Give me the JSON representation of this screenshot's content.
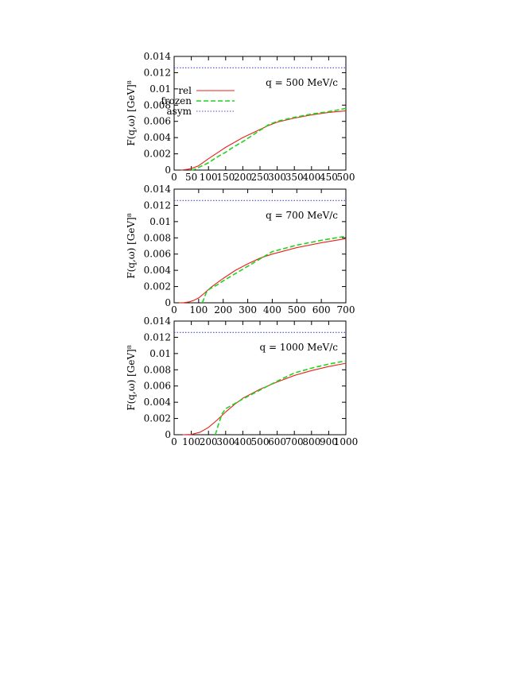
{
  "figure": {
    "y_axis_label": "F(q,ω) [GeV]⁸"
  },
  "legend": [
    {
      "name": "rel",
      "color": "#e8201b",
      "dash": "solid"
    },
    {
      "name": "frozen",
      "color": "#1fd41f",
      "dash": "dashed"
    },
    {
      "name": "asym",
      "color": "#4a4ad8",
      "dash": "dotted"
    }
  ],
  "chart_data": [
    {
      "type": "line",
      "annotation": "q = 500 MeV/c",
      "xlim": [
        0,
        500
      ],
      "ylim": [
        0,
        0.014
      ],
      "x_ticks": [
        "0",
        "50",
        "100",
        "150",
        "200",
        "250",
        "300",
        "350",
        "400",
        "450",
        "500"
      ],
      "y_ticks": [
        "0",
        "0.002",
        "0.004",
        "0.006",
        "0.008",
        "0.01",
        "0.012",
        "0.014"
      ],
      "x_tick_values": [
        0,
        50,
        100,
        150,
        200,
        250,
        300,
        350,
        400,
        450,
        500
      ],
      "y_tick_values": [
        0,
        0.002,
        0.004,
        0.006,
        0.008,
        0.01,
        0.012,
        0.014
      ],
      "show_legend": true,
      "series": [
        {
          "name": "rel",
          "x": [
            20,
            30,
            40,
            50,
            60,
            70,
            80,
            100,
            125,
            150,
            175,
            200,
            225,
            250,
            275,
            300,
            350,
            400,
            450,
            500
          ],
          "y": [
            0.0,
            5e-05,
            0.0001,
            0.0002,
            0.00035,
            0.0005,
            0.0008,
            0.0014,
            0.0021,
            0.0028,
            0.0034,
            0.004,
            0.0045,
            0.005,
            0.0055,
            0.0059,
            0.0064,
            0.0068,
            0.0071,
            0.0073
          ]
        },
        {
          "name": "frozen",
          "x": [
            50,
            60,
            65,
            70,
            80,
            90,
            100,
            125,
            150,
            175,
            200,
            225,
            250,
            265,
            275,
            300,
            350,
            400,
            450,
            500
          ],
          "y": [
            0.0,
            0.0001,
            0.0002,
            0.0003,
            0.0005,
            0.0007,
            0.0009,
            0.0016,
            0.0022,
            0.0029,
            0.0035,
            0.0042,
            0.0049,
            0.0053,
            0.0056,
            0.006,
            0.0065,
            0.0069,
            0.0072,
            0.0076
          ]
        },
        {
          "name": "asym",
          "x": [
            0,
            500
          ],
          "y": [
            0.0126,
            0.0126
          ]
        }
      ]
    },
    {
      "type": "line",
      "annotation": "q = 700 MeV/c",
      "xlim": [
        0,
        700
      ],
      "ylim": [
        0,
        0.014
      ],
      "x_ticks": [
        "0",
        "100",
        "200",
        "300",
        "400",
        "500",
        "600",
        "700"
      ],
      "y_ticks": [
        "0",
        "0.002",
        "0.004",
        "0.006",
        "0.008",
        "0.01",
        "0.012",
        "0.014"
      ],
      "x_tick_values": [
        0,
        100,
        200,
        300,
        400,
        500,
        600,
        700
      ],
      "y_tick_values": [
        0,
        0.002,
        0.004,
        0.006,
        0.008,
        0.01,
        0.012,
        0.014
      ],
      "show_legend": false,
      "series": [
        {
          "name": "rel",
          "x": [
            20,
            40,
            60,
            80,
            100,
            120,
            150,
            200,
            250,
            300,
            350,
            400,
            500,
            600,
            700
          ],
          "y": [
            0.0,
            2e-05,
            0.0001,
            0.0003,
            0.0006,
            0.0011,
            0.0019,
            0.003,
            0.004,
            0.0048,
            0.0055,
            0.006,
            0.0068,
            0.0074,
            0.0079
          ]
        },
        {
          "name": "frozen",
          "x": [
            115,
            120,
            125,
            130,
            140,
            150,
            175,
            200,
            250,
            300,
            350,
            400,
            500,
            600,
            700
          ],
          "y": [
            0.0,
            0.0004,
            0.0008,
            0.0012,
            0.0016,
            0.0018,
            0.0022,
            0.0027,
            0.0036,
            0.0045,
            0.0054,
            0.0063,
            0.0071,
            0.0077,
            0.0082
          ]
        },
        {
          "name": "asym",
          "x": [
            0,
            700
          ],
          "y": [
            0.0126,
            0.0126
          ]
        }
      ]
    },
    {
      "type": "line",
      "annotation": "q = 1000 MeV/c",
      "xlim": [
        0,
        1000
      ],
      "ylim": [
        0,
        0.014
      ],
      "x_ticks": [
        "0",
        "100",
        "200",
        "300",
        "400",
        "500",
        "600",
        "700",
        "800",
        "900",
        "1000"
      ],
      "y_ticks": [
        "0",
        "0.002",
        "0.004",
        "0.006",
        "0.008",
        "0.01",
        "0.012",
        "0.014"
      ],
      "x_tick_values": [
        0,
        100,
        200,
        300,
        400,
        500,
        600,
        700,
        800,
        900,
        1000
      ],
      "y_tick_values": [
        0,
        0.002,
        0.004,
        0.006,
        0.008,
        0.01,
        0.012,
        0.014
      ],
      "show_legend": false,
      "series": [
        {
          "name": "rel",
          "x": [
            50,
            100,
            150,
            200,
            250,
            300,
            350,
            400,
            500,
            600,
            700,
            800,
            900,
            1000
          ],
          "y": [
            0.0,
            3e-05,
            0.0003,
            0.0009,
            0.0018,
            0.0028,
            0.0037,
            0.0045,
            0.0056,
            0.0065,
            0.0073,
            0.0079,
            0.0084,
            0.0088
          ]
        },
        {
          "name": "frozen",
          "x": [
            240,
            250,
            260,
            270,
            280,
            300,
            350,
            400,
            500,
            600,
            700,
            800,
            900,
            1000
          ],
          "y": [
            0.0,
            0.0007,
            0.0014,
            0.002,
            0.0026,
            0.0032,
            0.0038,
            0.0044,
            0.0055,
            0.0066,
            0.0076,
            0.0082,
            0.0087,
            0.0091
          ]
        },
        {
          "name": "asym",
          "x": [
            0,
            1000
          ],
          "y": [
            0.0126,
            0.0126
          ]
        }
      ]
    }
  ]
}
